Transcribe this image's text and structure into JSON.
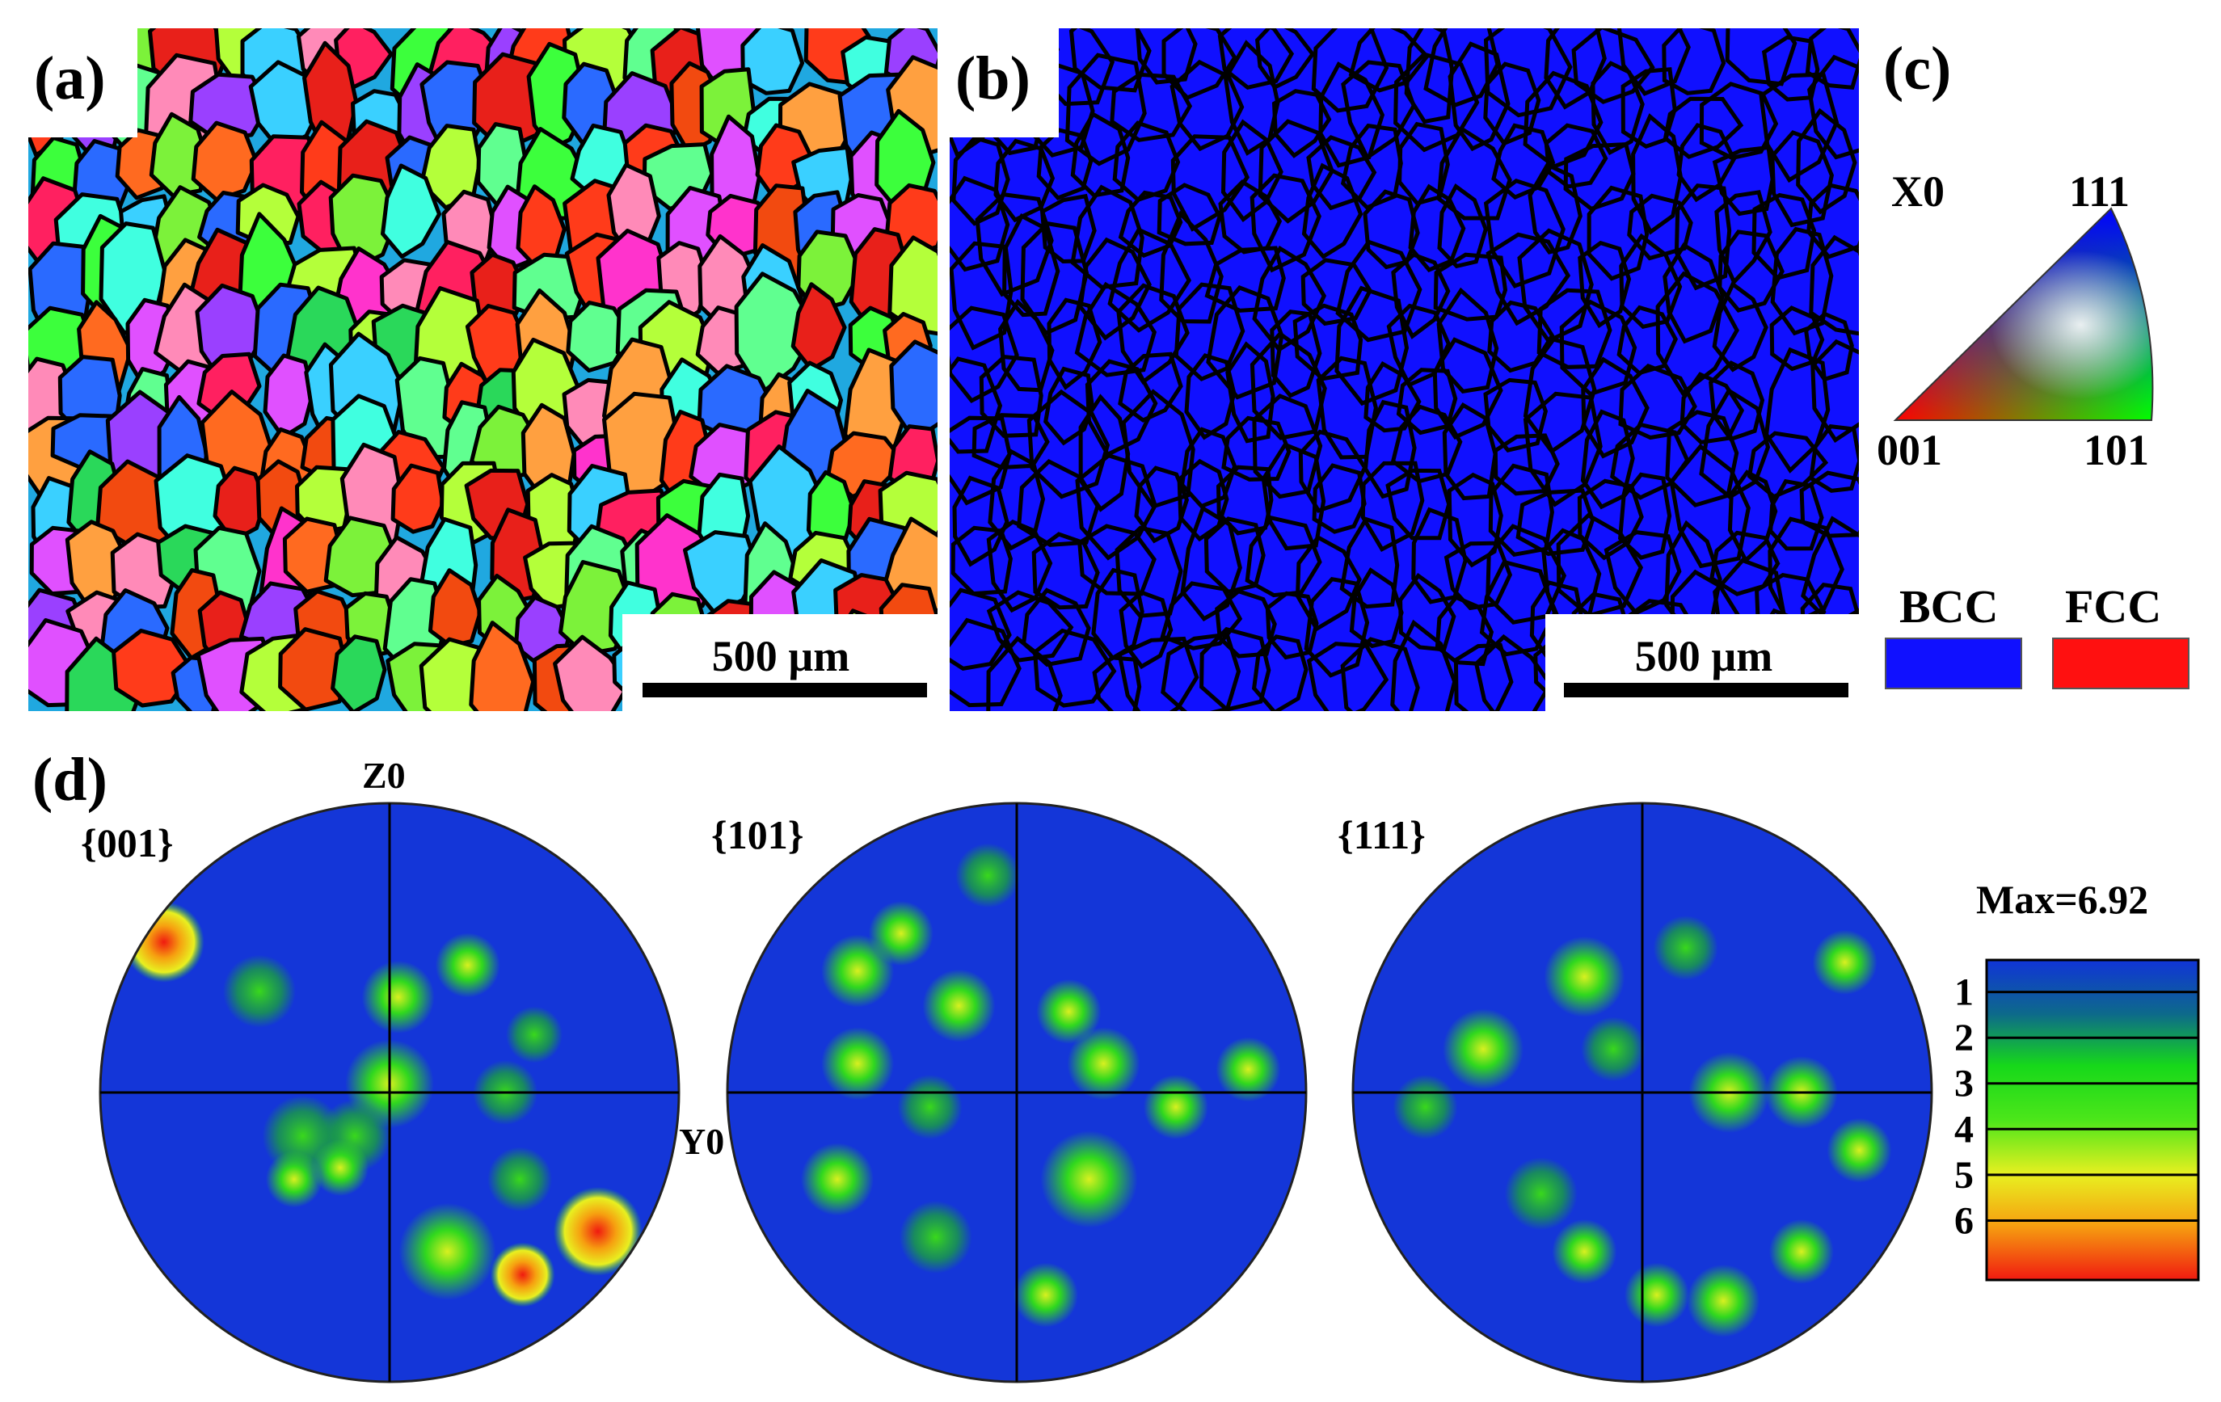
{
  "panels": {
    "a": {
      "label": "(a)",
      "scale_bar": "500 µm"
    },
    "b": {
      "label": "(b)",
      "scale_bar": "500 µm"
    },
    "c": {
      "label": "(c)",
      "ipf_axis": "X0",
      "ipf_corners": {
        "c001": "001",
        "c101": "101",
        "c111": "111"
      },
      "phases": [
        {
          "name": "BCC",
          "color": "#1010ff"
        },
        {
          "name": "FCC",
          "color": "#ff1010"
        }
      ]
    },
    "d": {
      "label": "(d)",
      "axis_top": "Z0",
      "axis_right": "Y0",
      "pole_figures": [
        "{001}",
        "{101}",
        "{111}"
      ],
      "colorbar": {
        "max_label": "Max=6.92",
        "ticks": [
          "1",
          "2",
          "3",
          "4",
          "5",
          "6"
        ],
        "colors": [
          "#1034d8",
          "#0d8a52",
          "#16d81a",
          "#4ce61a",
          "#e8f020",
          "#f6a010",
          "#f01a10"
        ]
      }
    }
  }
}
